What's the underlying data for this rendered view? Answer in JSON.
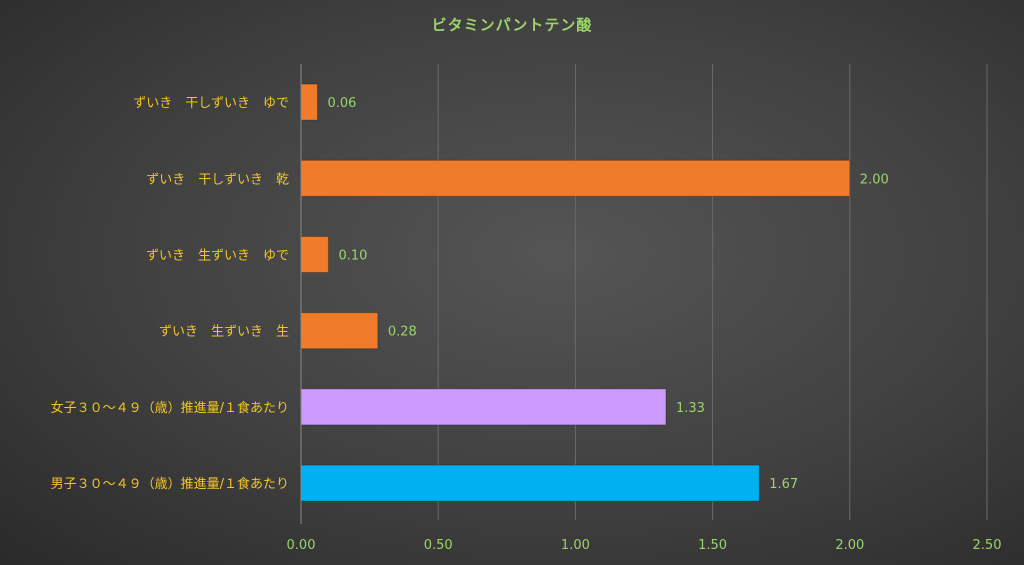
{
  "chart_data": {
    "type": "bar",
    "orientation": "horizontal",
    "title": "ビタミンパントテン酸",
    "categories": [
      "ずいき　干しずいき　ゆで",
      "ずいき　干しずいき　乾",
      "ずいき　生ずいき　ゆで",
      "ずいき　生ずいき　生",
      "女子３０～４９（歳）推進量/１食あたり",
      "男子３０～４９（歳）推進量/１食あたり"
    ],
    "values": [
      0.06,
      2.0,
      0.1,
      0.28,
      1.33,
      1.67
    ],
    "value_labels": [
      "0.06",
      "2.00",
      "0.10",
      "0.28",
      "1.33",
      "1.67"
    ],
    "bar_colors": [
      "#f07b2a",
      "#f07b2a",
      "#f07b2a",
      "#f07b2a",
      "#cc99ff",
      "#00b0f0"
    ],
    "xlim": [
      0,
      2.5
    ],
    "x_ticks": [
      0,
      0.5,
      1.0,
      1.5,
      2.0,
      2.5
    ],
    "x_tick_labels": [
      "0.00",
      "0.50",
      "1.00",
      "1.50",
      "2.00",
      "2.50"
    ],
    "grid": "vertical",
    "legend": "none",
    "colors": {
      "title": "#9bd46a",
      "category_label": "#f3c623",
      "value_label": "#9bd46a",
      "tick_label": "#9bd46a"
    }
  }
}
